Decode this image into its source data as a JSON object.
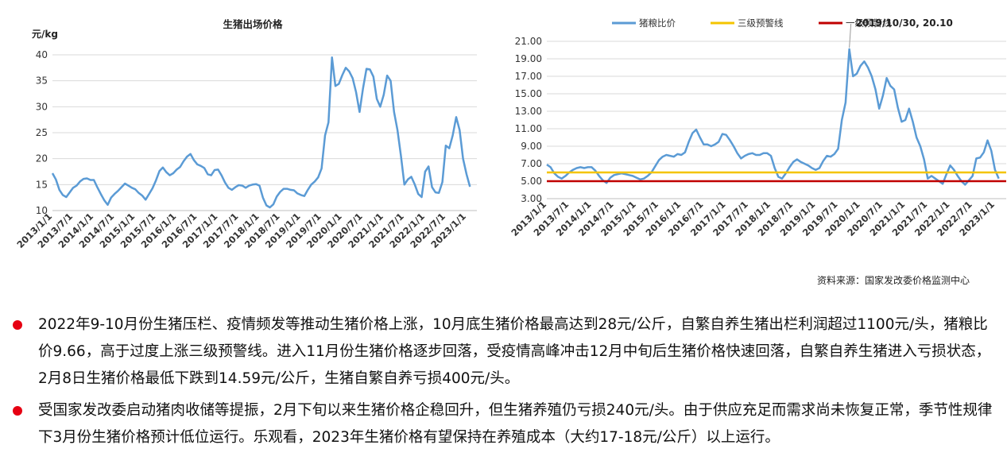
{
  "chart_data": [
    {
      "type": "line",
      "title": "生猪出场价格",
      "ylabel": "元/kg",
      "ylim": [
        10,
        40
      ],
      "yticks": [
        10,
        15,
        20,
        25,
        30,
        35,
        40
      ],
      "grid": true,
      "x_tick_labels": [
        "2013/1/1",
        "2013/7/1",
        "2014/1/1",
        "2014/7/1",
        "2015/1/1",
        "2015/7/1",
        "2016/1/1",
        "2016/7/1",
        "2017/1/1",
        "2017/7/1",
        "2018/1/1",
        "2018/7/1",
        "2019/1/1",
        "2019/7/1",
        "2020/1/1",
        "2020/7/1",
        "2021/1/1",
        "2021/7/1",
        "2022/1/1",
        "2022/7/1",
        "2023/1/1"
      ],
      "series": [
        {
          "color": "#5b9bd5",
          "x": [
            "2013/01",
            "2013/02",
            "2013/03",
            "2013/04",
            "2013/05",
            "2013/06",
            "2013/07",
            "2013/08",
            "2013/09",
            "2013/10",
            "2013/11",
            "2013/12",
            "2014/01",
            "2014/02",
            "2014/03",
            "2014/04",
            "2014/05",
            "2014/06",
            "2014/07",
            "2014/08",
            "2014/09",
            "2014/10",
            "2014/11",
            "2014/12",
            "2015/01",
            "2015/02",
            "2015/03",
            "2015/04",
            "2015/05",
            "2015/06",
            "2015/07",
            "2015/08",
            "2015/09",
            "2015/10",
            "2015/11",
            "2015/12",
            "2016/01",
            "2016/02",
            "2016/03",
            "2016/04",
            "2016/05",
            "2016/06",
            "2016/07",
            "2016/08",
            "2016/09",
            "2016/10",
            "2016/11",
            "2016/12",
            "2017/01",
            "2017/02",
            "2017/03",
            "2017/04",
            "2017/05",
            "2017/06",
            "2017/07",
            "2017/08",
            "2017/09",
            "2017/10",
            "2017/11",
            "2017/12",
            "2018/01",
            "2018/02",
            "2018/03",
            "2018/04",
            "2018/05",
            "2018/06",
            "2018/07",
            "2018/08",
            "2018/09",
            "2018/10",
            "2018/11",
            "2018/12",
            "2019/01",
            "2019/02",
            "2019/03",
            "2019/04",
            "2019/05",
            "2019/06",
            "2019/07",
            "2019/08",
            "2019/09",
            "2019/10",
            "2019/11",
            "2019/12",
            "2020/01",
            "2020/02",
            "2020/03",
            "2020/04",
            "2020/05",
            "2020/06",
            "2020/07",
            "2020/08",
            "2020/09",
            "2020/10",
            "2020/11",
            "2020/12",
            "2021/01",
            "2021/02",
            "2021/03",
            "2021/04",
            "2021/05",
            "2021/06",
            "2021/07",
            "2021/08",
            "2021/09",
            "2021/10",
            "2021/11",
            "2021/12",
            "2022/01",
            "2022/02",
            "2022/03",
            "2022/04",
            "2022/05",
            "2022/06",
            "2022/07",
            "2022/08",
            "2022/09",
            "2022/10",
            "2022/11",
            "2022/12",
            "2023/01",
            "2023/02"
          ],
          "values": [
            17.2,
            16.0,
            14.0,
            13.0,
            12.6,
            13.5,
            14.4,
            14.8,
            15.6,
            16.1,
            16.2,
            15.9,
            15.9,
            14.5,
            13.2,
            12.0,
            11.1,
            12.5,
            13.2,
            13.8,
            14.5,
            15.2,
            14.8,
            14.4,
            14.1,
            13.4,
            12.9,
            12.1,
            13.2,
            14.3,
            15.8,
            17.6,
            18.3,
            17.4,
            16.8,
            17.2,
            17.9,
            18.4,
            19.5,
            20.4,
            20.9,
            19.7,
            18.9,
            18.6,
            18.2,
            17.0,
            16.8,
            17.8,
            17.9,
            16.8,
            15.4,
            14.4,
            14.0,
            14.5,
            14.9,
            14.8,
            14.4,
            14.8,
            15.0,
            15.1,
            14.8,
            12.5,
            11.0,
            10.6,
            11.2,
            12.7,
            13.6,
            14.2,
            14.2,
            14.0,
            13.9,
            13.3,
            13.0,
            12.8,
            14.0,
            15.0,
            15.6,
            16.4,
            18.1,
            24.5,
            27.0,
            39.5,
            34.0,
            34.4,
            36.1,
            37.5,
            36.8,
            35.5,
            32.8,
            29.0,
            33.5,
            37.3,
            37.2,
            35.8,
            31.5,
            30.0,
            32.3,
            36.0,
            35.0,
            29.0,
            25.5,
            20.5,
            15.0,
            16.0,
            16.5,
            15.0,
            13.2,
            12.6,
            17.5,
            18.5,
            14.5,
            13.5,
            13.4,
            15.5,
            22.5,
            22.0,
            24.5,
            28.0,
            25.5,
            20.0,
            17.0,
            14.59
          ]
        }
      ]
    },
    {
      "type": "line",
      "ylim": [
        3.0,
        21.0
      ],
      "yticks": [
        "3.00",
        "5.00",
        "7.00",
        "9.00",
        "11.00",
        "13.00",
        "15.00",
        "17.00",
        "19.00",
        "21.00"
      ],
      "grid": true,
      "legend_position": "top",
      "annotation": "2019/10/30, 20.10",
      "x_tick_labels": [
        "2013/1/1",
        "2013/7/1",
        "2014/1/1",
        "2014/7/1",
        "2015/1/1",
        "2015/7/1",
        "2016/1/1",
        "2016/7/1",
        "2017/1/1",
        "2017/7/1",
        "2018/1/1",
        "2018/7/1",
        "2019/1/1",
        "2019/7/1",
        "2020/1/1",
        "2020/7/1",
        "2021/1/1",
        "2021/7/1",
        "2022/1/1",
        "2022/7/1",
        "2023/1/1"
      ],
      "series": [
        {
          "name": "猪粮比价",
          "color": "#5b9bd5",
          "x": [
            "2013/01",
            "2013/02",
            "2013/03",
            "2013/04",
            "2013/05",
            "2013/06",
            "2013/07",
            "2013/08",
            "2013/09",
            "2013/10",
            "2013/11",
            "2013/12",
            "2014/01",
            "2014/02",
            "2014/03",
            "2014/04",
            "2014/05",
            "2014/06",
            "2014/07",
            "2014/08",
            "2014/09",
            "2014/10",
            "2014/11",
            "2014/12",
            "2015/01",
            "2015/02",
            "2015/03",
            "2015/04",
            "2015/05",
            "2015/06",
            "2015/07",
            "2015/08",
            "2015/09",
            "2015/10",
            "2015/11",
            "2015/12",
            "2016/01",
            "2016/02",
            "2016/03",
            "2016/04",
            "2016/05",
            "2016/06",
            "2016/07",
            "2016/08",
            "2016/09",
            "2016/10",
            "2016/11",
            "2016/12",
            "2017/01",
            "2017/02",
            "2017/03",
            "2017/04",
            "2017/05",
            "2017/06",
            "2017/07",
            "2017/08",
            "2017/09",
            "2017/10",
            "2017/11",
            "2017/12",
            "2018/01",
            "2018/02",
            "2018/03",
            "2018/04",
            "2018/05",
            "2018/06",
            "2018/07",
            "2018/08",
            "2018/09",
            "2018/10",
            "2018/11",
            "2018/12",
            "2019/01",
            "2019/02",
            "2019/03",
            "2019/04",
            "2019/05",
            "2019/06",
            "2019/07",
            "2019/08",
            "2019/09",
            "2019/10",
            "2019/11",
            "2019/12",
            "2020/01",
            "2020/02",
            "2020/03",
            "2020/04",
            "2020/05",
            "2020/06",
            "2020/07",
            "2020/08",
            "2020/09",
            "2020/10",
            "2020/11",
            "2020/12",
            "2021/01",
            "2021/02",
            "2021/03",
            "2021/04",
            "2021/05",
            "2021/06",
            "2021/07",
            "2021/08",
            "2021/09",
            "2021/10",
            "2021/11",
            "2021/12",
            "2022/01",
            "2022/02",
            "2022/03",
            "2022/04",
            "2022/05",
            "2022/06",
            "2022/07",
            "2022/08",
            "2022/09",
            "2022/10",
            "2022/11",
            "2022/12",
            "2023/01",
            "2023/02"
          ],
          "values": [
            6.9,
            6.6,
            5.9,
            5.5,
            5.3,
            5.6,
            6.0,
            6.3,
            6.5,
            6.6,
            6.5,
            6.6,
            6.6,
            6.2,
            5.6,
            5.1,
            4.8,
            5.4,
            5.7,
            5.8,
            5.9,
            5.8,
            5.7,
            5.6,
            5.4,
            5.2,
            5.3,
            5.6,
            6.0,
            6.7,
            7.4,
            7.8,
            8.0,
            7.9,
            7.8,
            8.1,
            8.0,
            8.3,
            9.5,
            10.5,
            10.9,
            10.0,
            9.2,
            9.2,
            9.0,
            9.2,
            9.5,
            10.4,
            10.3,
            9.7,
            9.0,
            8.2,
            7.6,
            7.9,
            8.1,
            8.2,
            8.0,
            8.0,
            8.2,
            8.2,
            7.9,
            6.5,
            5.5,
            5.3,
            5.9,
            6.6,
            7.2,
            7.5,
            7.2,
            7.0,
            6.8,
            6.5,
            6.3,
            6.5,
            7.3,
            7.9,
            7.8,
            8.1,
            8.7,
            12.0,
            14.0,
            20.1,
            17.0,
            17.3,
            18.2,
            18.7,
            18.0,
            17.0,
            15.5,
            13.3,
            14.8,
            16.8,
            15.9,
            15.5,
            13.4,
            11.8,
            12.0,
            13.3,
            11.8,
            10.0,
            9.0,
            7.5,
            5.3,
            5.6,
            5.3,
            5.0,
            4.7,
            5.8,
            6.8,
            6.3,
            5.6,
            5.0,
            4.6,
            5.1,
            5.6,
            7.6,
            7.7,
            8.3,
            9.66,
            8.5,
            6.3,
            5.3
          ]
        },
        {
          "name": "三级预警线",
          "color": "#f4c400",
          "constant": 6.0
        },
        {
          "name": "一级预警线",
          "color": "#c00000",
          "constant": 5.0
        }
      ]
    }
  ],
  "source": "资料来源：国家发改委价格监测中心",
  "bullets": [
    "2022年9-10月份生猪压栏、疫情频发等推动生猪价格上涨，10月底生猪价格最高达到28元/公斤，自繁自养生猪出栏利润超过1100元/头，猪粮比价9.66，高于过度上涨三级预警线。进入11月份生猪价格逐步回落，受疫情高峰冲击12月中旬后生猪价格快速回落，自繁自养生猪进入亏损状态，2月8日生猪价格最低下跌到14.59元/公斤，生猪自繁自养亏损400元/头。",
    "受国家发改委启动猪肉收储等提振，2月下旬以来生猪价格企稳回升，但生猪养殖仍亏损240元/头。由于供应充足而需求尚未恢复正常，季节性规律下3月份生猪价格预计低位运行。乐观看，2023年生猪价格有望保持在养殖成本（大约17-18元/公斤）以上运行。"
  ]
}
